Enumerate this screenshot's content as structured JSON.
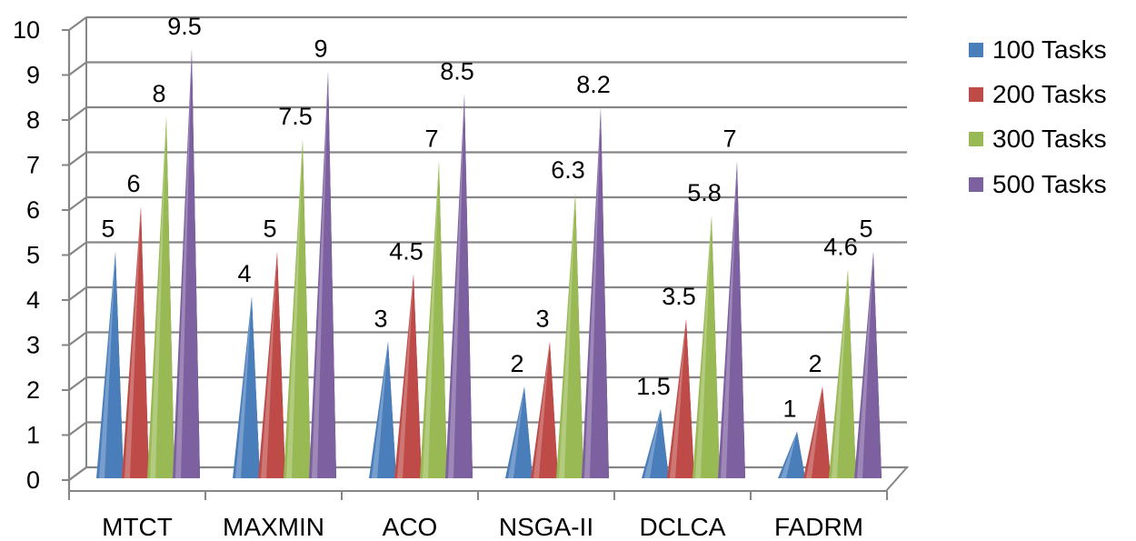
{
  "chart_data": {
    "type": "bar",
    "style": "3d-cone",
    "title": "",
    "xlabel": "",
    "ylabel": "",
    "ylim": [
      0,
      10
    ],
    "yticks": [
      "0",
      "1",
      "2",
      "3",
      "4",
      "5",
      "6",
      "7",
      "8",
      "9",
      "10"
    ],
    "categories": [
      "MTCT",
      "MAXMIN",
      "ACO",
      "NSGA-II",
      "DCLCA",
      "FADRM"
    ],
    "series": [
      {
        "name": "100 Tasks",
        "color": "#4a7ebb",
        "values": [
          5,
          4,
          3,
          2,
          1.5,
          1
        ]
      },
      {
        "name": "200 Tasks",
        "color": "#be4b48",
        "values": [
          6,
          5,
          4.5,
          3,
          3.5,
          2
        ]
      },
      {
        "name": "300 Tasks",
        "color": "#98b954",
        "values": [
          8,
          7.5,
          7,
          6.3,
          5.8,
          4.6
        ]
      },
      {
        "name": "500 Tasks",
        "color": "#7d60a0",
        "values": [
          9.5,
          9,
          8.5,
          8.2,
          7,
          5
        ]
      }
    ],
    "legend_position": "right",
    "gridlines": true
  }
}
